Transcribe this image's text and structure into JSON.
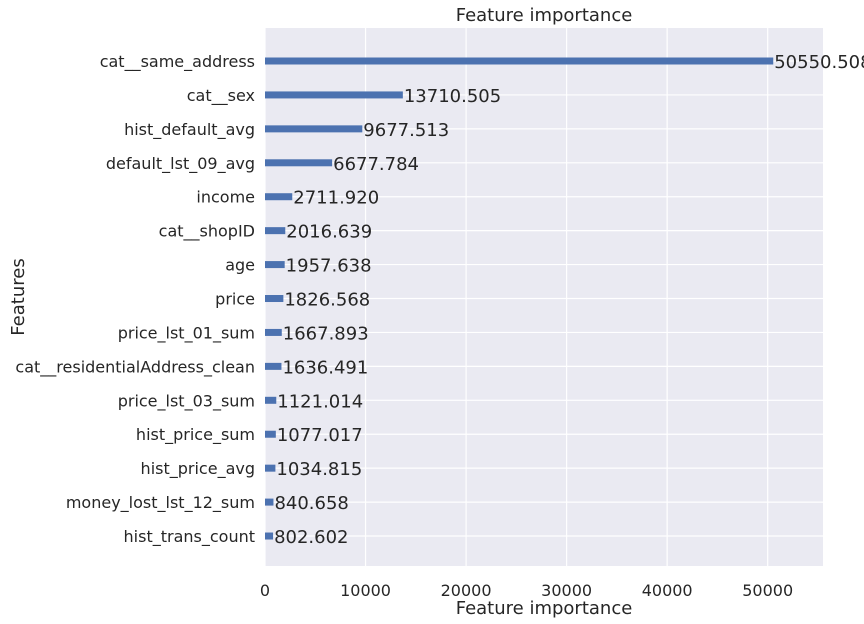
{
  "chart_data": {
    "type": "bar",
    "orientation": "horizontal",
    "title": "Feature importance",
    "xlabel": "Feature importance",
    "ylabel": "Features",
    "xlim": [
      0,
      55500
    ],
    "xticks": [
      0,
      10000,
      20000,
      30000,
      40000,
      50000
    ],
    "xtick_labels": [
      "0",
      "10000",
      "20000",
      "30000",
      "40000",
      "50000"
    ],
    "grid": true,
    "colors": {
      "bar": "#4c72b0",
      "plot_bg": "#eaeaf2",
      "grid": "#ffffff",
      "text": "#262626"
    },
    "categories": [
      "cat__same_address",
      "cat__sex",
      "hist_default_avg",
      "default_lst_09_avg",
      "income",
      "cat__shopID",
      "age",
      "price",
      "price_lst_01_sum",
      "cat__residentialAddress_clean",
      "price_lst_03_sum",
      "hist_price_sum",
      "hist_price_avg",
      "money_lost_lst_12_sum",
      "hist_trans_count"
    ],
    "values": [
      50550.508,
      13710.505,
      9677.513,
      6677.784,
      2711.92,
      2016.639,
      1957.638,
      1826.568,
      1667.893,
      1636.491,
      1121.014,
      1077.017,
      1034.815,
      840.658,
      802.602
    ],
    "value_labels": [
      "50550.508",
      "13710.505",
      "9677.513",
      "6677.784",
      "2711.920",
      "2016.639",
      "1957.638",
      "1826.568",
      "1667.893",
      "1636.491",
      "1121.014",
      "1077.017",
      "1034.815",
      "840.658",
      "802.602"
    ]
  }
}
